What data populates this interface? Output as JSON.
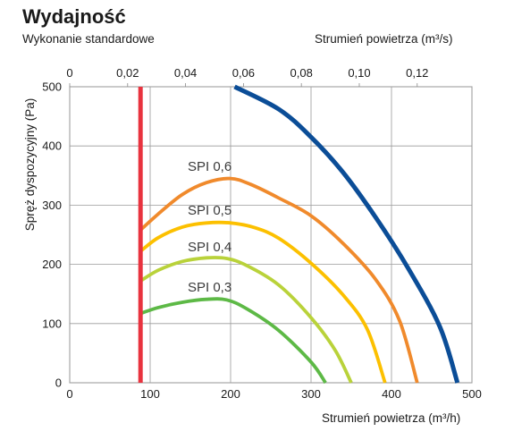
{
  "header": {
    "title": "Wydajność",
    "subtitle": "Wykonanie standardowe"
  },
  "chart_data": {
    "type": "line",
    "title": "Wydajność",
    "subtitle": "Wykonanie standardowe",
    "xlabel": "Strumień powietrza (m³/h)",
    "x2label": "Strumień powietrza (m³/s)",
    "ylabel": "Spręż dyspozycyjny (Pa)",
    "xlim": [
      0,
      500
    ],
    "ylim": [
      0,
      500
    ],
    "x2lim": [
      0,
      0.1389
    ],
    "xticks": [
      0,
      100,
      200,
      300,
      400,
      500
    ],
    "yticks": [
      0,
      100,
      200,
      300,
      400,
      500
    ],
    "x2ticks": [
      "0",
      "0,02",
      "0,04",
      "0,06",
      "0,08",
      "0,10",
      "0,12"
    ],
    "x2tick_values": [
      0,
      0.02,
      0.04,
      0.06,
      0.08,
      0.1,
      0.12
    ],
    "grid": true,
    "limit_line": {
      "x": 88,
      "color": "#e8333f"
    },
    "series": [
      {
        "name": "",
        "color": "#0b4d97",
        "points": [
          [
            205,
            500
          ],
          [
            260,
            462
          ],
          [
            300,
            415
          ],
          [
            340,
            355
          ],
          [
            380,
            280
          ],
          [
            420,
            195
          ],
          [
            460,
            95
          ],
          [
            482,
            0
          ]
        ]
      },
      {
        "name": "SPI 0,6",
        "color": "#f08a2c",
        "points": [
          [
            88,
            258
          ],
          [
            110,
            285
          ],
          [
            140,
            318
          ],
          [
            170,
            338
          ],
          [
            200,
            345
          ],
          [
            225,
            335
          ],
          [
            260,
            312
          ],
          [
            300,
            282
          ],
          [
            340,
            235
          ],
          [
            380,
            175
          ],
          [
            410,
            105
          ],
          [
            432,
            0
          ]
        ]
      },
      {
        "name": "SPI 0,5",
        "color": "#fcc000",
        "points": [
          [
            88,
            222
          ],
          [
            110,
            245
          ],
          [
            140,
            263
          ],
          [
            170,
            270
          ],
          [
            200,
            270
          ],
          [
            230,
            262
          ],
          [
            260,
            244
          ],
          [
            300,
            202
          ],
          [
            340,
            148
          ],
          [
            370,
            90
          ],
          [
            392,
            0
          ]
        ]
      },
      {
        "name": "SPI 0,4",
        "color": "#b9d23a",
        "points": [
          [
            88,
            172
          ],
          [
            110,
            190
          ],
          [
            140,
            205
          ],
          [
            170,
            211
          ],
          [
            195,
            210
          ],
          [
            220,
            198
          ],
          [
            260,
            165
          ],
          [
            300,
            110
          ],
          [
            330,
            55
          ],
          [
            350,
            0
          ]
        ]
      },
      {
        "name": "SPI 0,3",
        "color": "#5db946",
        "points": [
          [
            88,
            117
          ],
          [
            110,
            127
          ],
          [
            140,
            136
          ],
          [
            170,
            141
          ],
          [
            195,
            140
          ],
          [
            220,
            125
          ],
          [
            260,
            88
          ],
          [
            300,
            35
          ],
          [
            318,
            0
          ]
        ]
      }
    ],
    "curve_labels": [
      "SPI 0,6",
      "SPI 0,5",
      "SPI 0,4",
      "SPI 0,3"
    ]
  }
}
